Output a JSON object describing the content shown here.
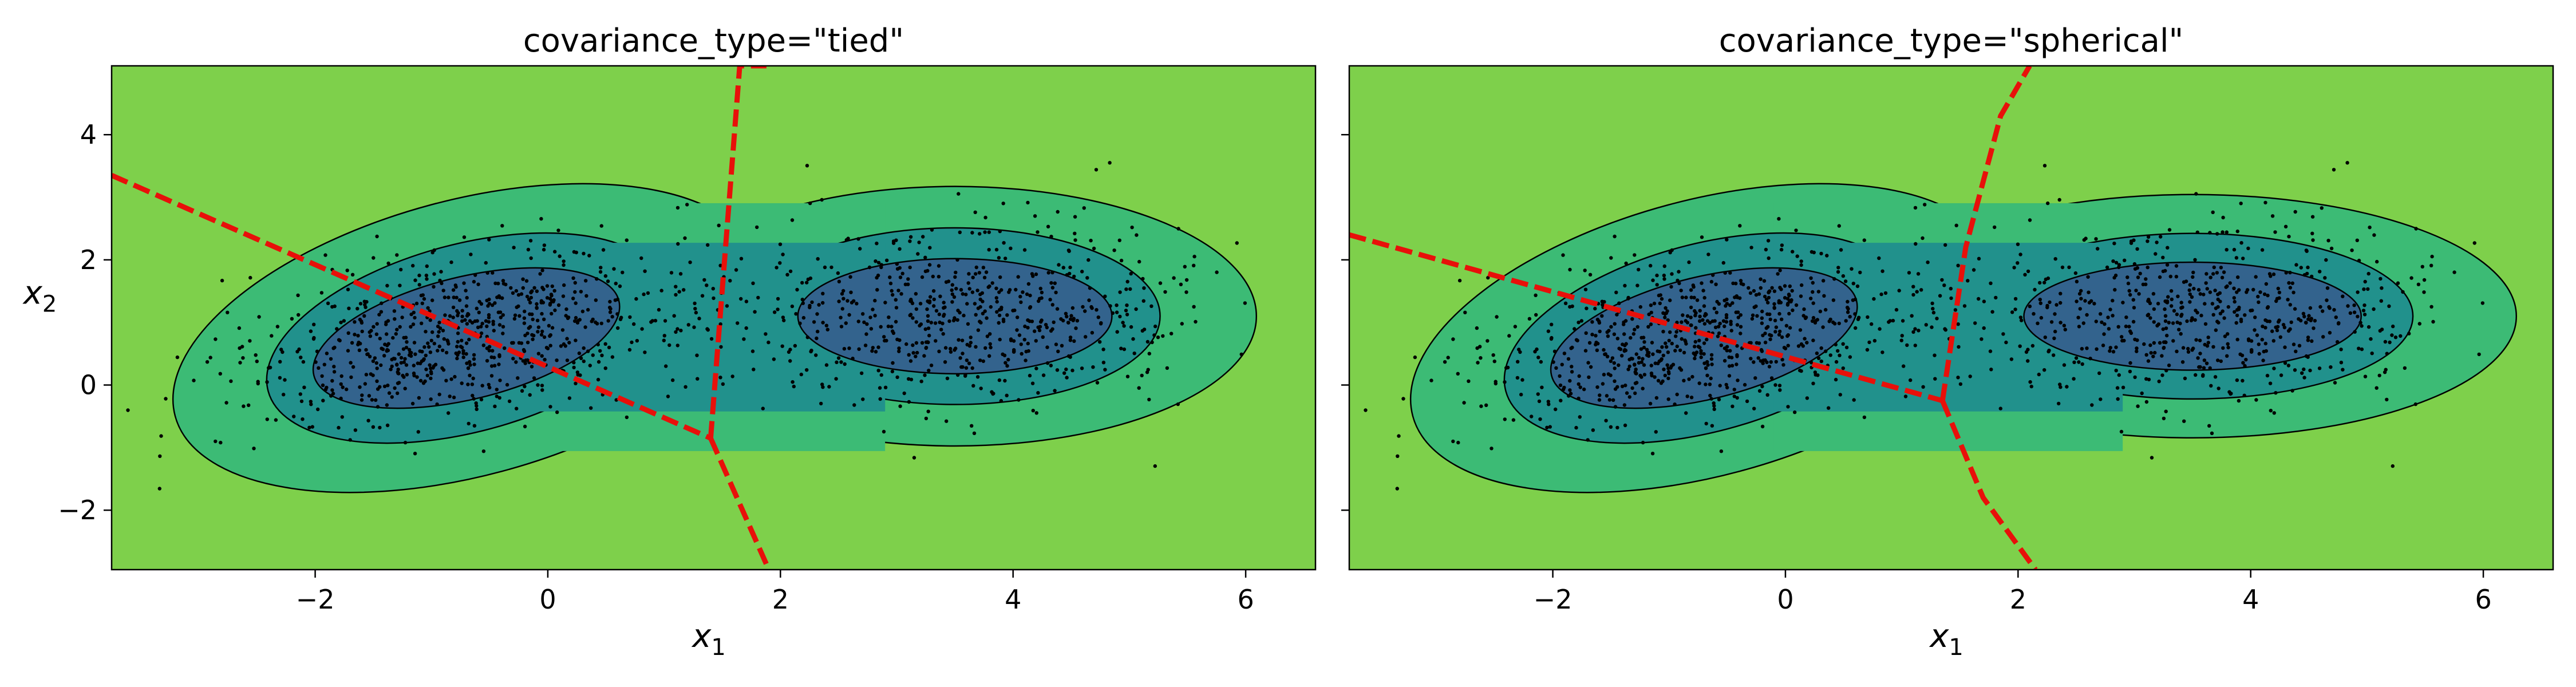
{
  "chart_data": [
    {
      "type": "scatter",
      "title": "covariance_type=\"tied\"",
      "xlabel_base": "x",
      "xlabel_sub": "1",
      "ylabel_base": "x",
      "ylabel_sub": "2",
      "xlim": [
        -3.75,
        6.6
      ],
      "ylim": [
        -2.95,
        5.1
      ],
      "xticks": [
        -2,
        0,
        2,
        4,
        6
      ],
      "yticks": [
        -2,
        0,
        2,
        4
      ],
      "xtick_labels": [
        "−2",
        "0",
        "2",
        "4",
        "6"
      ],
      "ytick_labels": [
        "−2",
        "0",
        "2",
        "4"
      ],
      "show_ytick_labels": true,
      "grid": false,
      "contour_levels": [
        {
          "level": 1,
          "color": "#7ed04b"
        },
        {
          "level": 2,
          "color": "#3cbb75"
        },
        {
          "level": 3,
          "color": "#21918c"
        },
        {
          "level": 4,
          "color": "#33638d"
        }
      ],
      "clusters": [
        {
          "center": [
            -0.7,
            0.75
          ],
          "axes": [
            1.35,
            0.85
          ],
          "angle_deg": 25,
          "n_points": 760
        },
        {
          "center": [
            3.5,
            1.1
          ],
          "axes": [
            1.35,
            0.8
          ],
          "angle_deg": 0,
          "n_points": 640
        }
      ],
      "boundary": [
        {
          "x": [
            -3.75,
            1.4
          ],
          "y": [
            3.35,
            -0.85
          ]
        },
        {
          "x": [
            1.4,
            1.65,
            1.88
          ],
          "y": [
            -0.85,
            5.1,
            5.1
          ]
        },
        {
          "x": [
            1.4,
            1.9
          ],
          "y": [
            -0.85,
            -2.95
          ]
        }
      ],
      "boundary_color": "#e8100a"
    },
    {
      "type": "scatter",
      "title": "covariance_type=\"spherical\"",
      "xlabel_base": "x",
      "xlabel_sub": "1",
      "xlim": [
        -3.75,
        6.6
      ],
      "ylim": [
        -2.95,
        5.1
      ],
      "xticks": [
        -2,
        0,
        2,
        4,
        6
      ],
      "yticks": [
        -2,
        0,
        2,
        4
      ],
      "xtick_labels": [
        "−2",
        "0",
        "2",
        "4",
        "6"
      ],
      "show_ytick_labels": false,
      "grid": false,
      "contour_levels": [
        {
          "level": 1,
          "color": "#7ed04b"
        },
        {
          "level": 2,
          "color": "#3cbb75"
        },
        {
          "level": 3,
          "color": "#21918c"
        },
        {
          "level": 4,
          "color": "#33638d"
        }
      ],
      "clusters": [
        {
          "center": [
            -0.7,
            0.75
          ],
          "axes": [
            1.35,
            0.85
          ],
          "angle_deg": 25,
          "n_points": 760
        },
        {
          "center": [
            3.5,
            1.1
          ],
          "axes": [
            1.45,
            0.75
          ],
          "angle_deg": 0,
          "n_points": 640
        }
      ],
      "boundary": [
        {
          "x": [
            -3.75,
            1.35
          ],
          "y": [
            2.4,
            -0.25
          ]
        },
        {
          "x": [
            1.35,
            1.55,
            1.85,
            2.1
          ],
          "y": [
            -0.25,
            2.2,
            4.3,
            5.1
          ]
        },
        {
          "x": [
            1.35,
            1.7,
            2.15
          ],
          "y": [
            -0.25,
            -1.8,
            -2.95
          ]
        }
      ],
      "boundary_color": "#e8100a"
    }
  ]
}
